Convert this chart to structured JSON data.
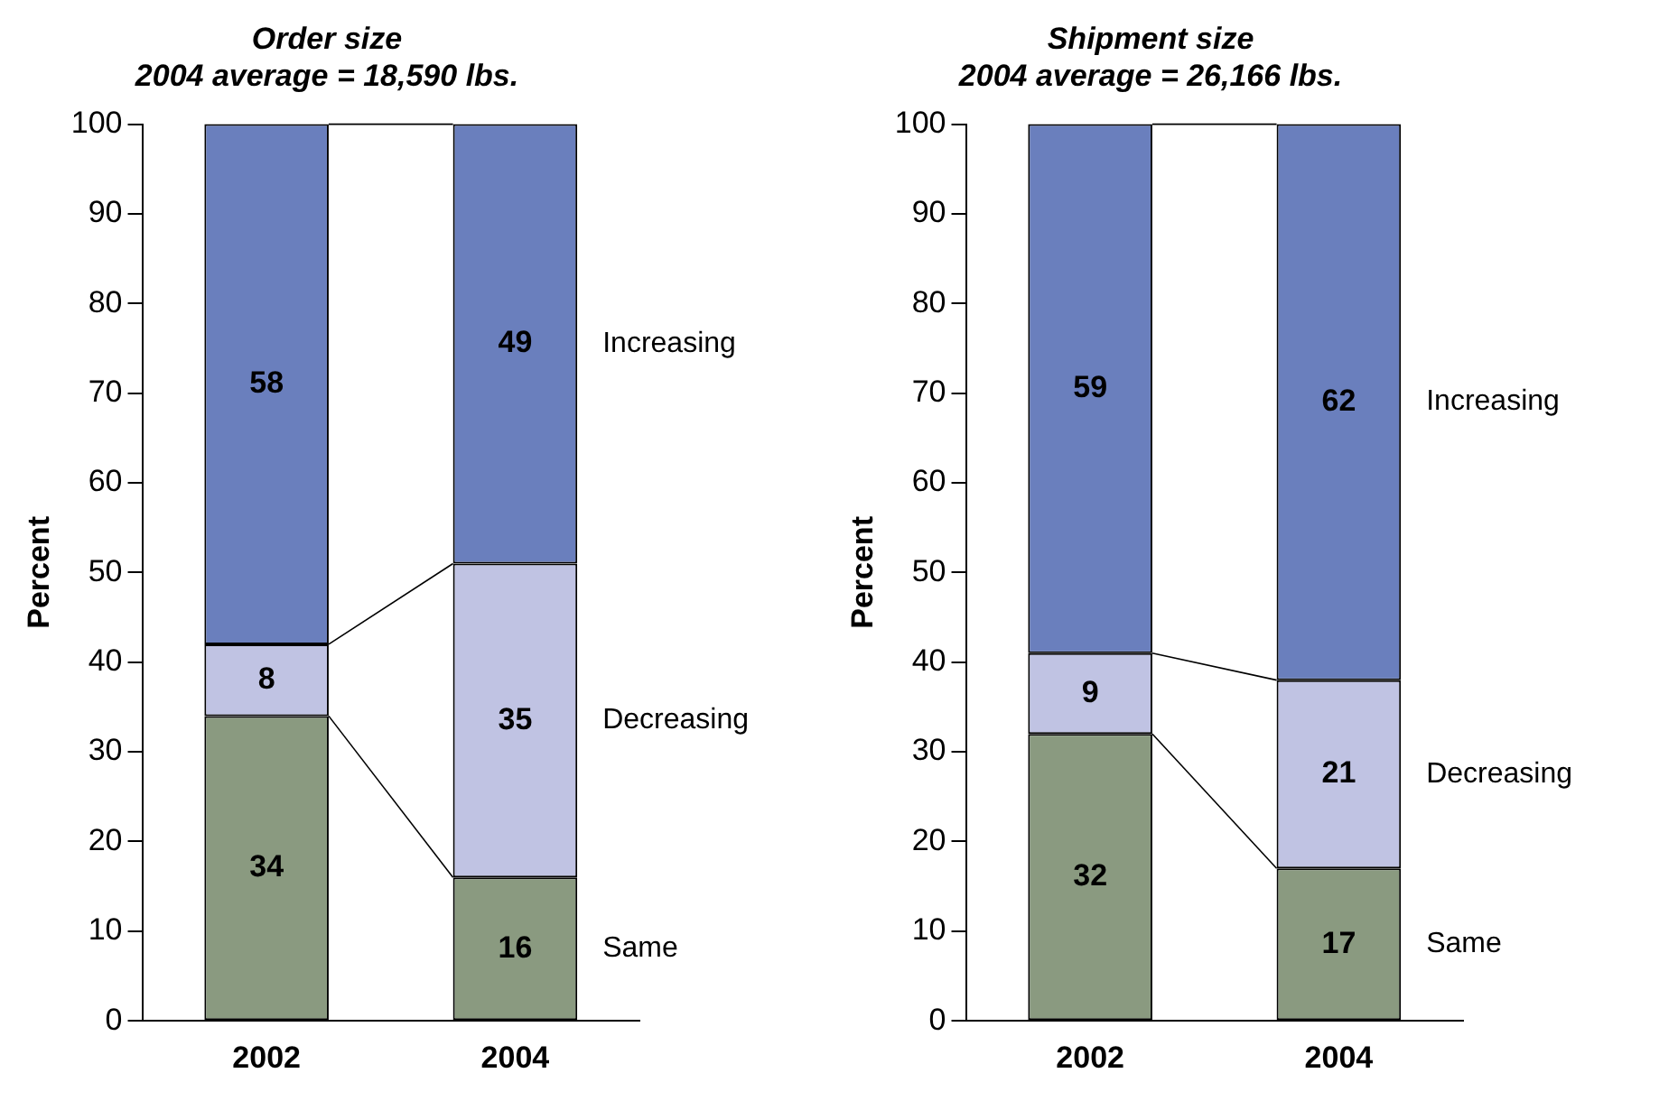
{
  "chart_data": [
    {
      "type": "bar",
      "title": "Order size\n2004 average = 18,590 lbs.",
      "ylabel": "Percent",
      "categories": [
        "2002",
        "2004"
      ],
      "stacked": true,
      "data_labels": true,
      "grid": false,
      "ylim": [
        0,
        100
      ],
      "yticks": [
        0,
        10,
        20,
        30,
        40,
        50,
        60,
        70,
        80,
        90,
        100
      ],
      "series": [
        {
          "name": "Same",
          "color": "#8a9a80",
          "values": [
            34,
            16
          ]
        },
        {
          "name": "Decreasing",
          "color": "#c0c3e3",
          "values": [
            8,
            35
          ]
        },
        {
          "name": "Increasing",
          "color": "#6a7fbd",
          "values": [
            58,
            49
          ]
        }
      ]
    },
    {
      "type": "bar",
      "title": "Shipment size\n2004 average = 26,166 lbs.",
      "ylabel": "Percent",
      "categories": [
        "2002",
        "2004"
      ],
      "stacked": true,
      "data_labels": true,
      "grid": false,
      "ylim": [
        0,
        100
      ],
      "yticks": [
        0,
        10,
        20,
        30,
        40,
        50,
        60,
        70,
        80,
        90,
        100
      ],
      "series": [
        {
          "name": "Same",
          "color": "#8a9a80",
          "values": [
            32,
            17
          ]
        },
        {
          "name": "Decreasing",
          "color": "#c0c3e3",
          "values": [
            9,
            21
          ]
        },
        {
          "name": "Increasing",
          "color": "#6a7fbd",
          "values": [
            59,
            62
          ]
        }
      ]
    }
  ]
}
